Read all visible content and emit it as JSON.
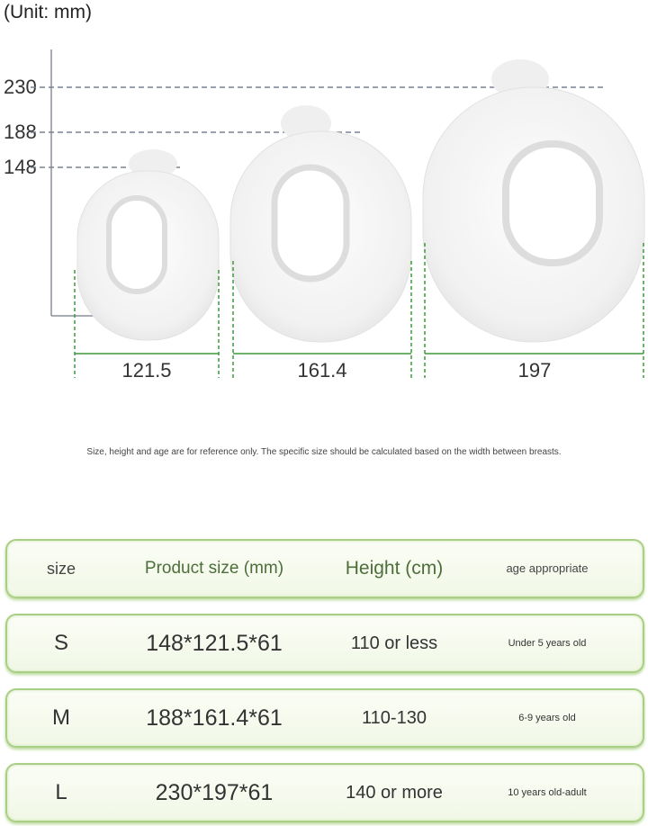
{
  "unit_label": "(Unit: mm)",
  "height_labels": [
    "230",
    "188",
    "148"
  ],
  "width_labels": [
    "121.5",
    "161.4",
    "197"
  ],
  "note": "Size, height and age are for reference only. The specific size should be calculated based on the width between breasts.",
  "table": {
    "headers": [
      "size",
      "Product size (mm)",
      "Height (cm)",
      "age appropriate"
    ],
    "rows": [
      [
        "S",
        "148*121.5*61",
        "110 or less",
        "Under 5 years old"
      ],
      [
        "M",
        "188*161.4*61",
        "110-130",
        "6-9 years old"
      ],
      [
        "L",
        "230*197*61",
        "140 or more",
        "10 years old-adult"
      ]
    ]
  },
  "colors": {
    "accent_green": "#a9cf86",
    "dimension_green": "#3f9a3a"
  }
}
